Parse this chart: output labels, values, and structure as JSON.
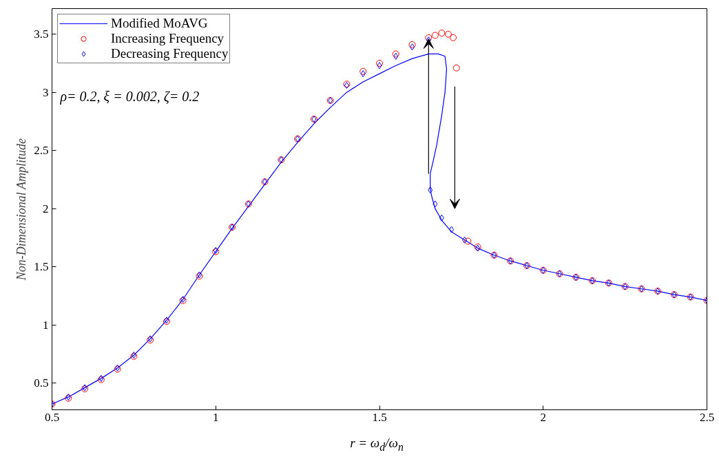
{
  "chart_data": {
    "type": "scatter",
    "xlabel": "r = ω$_{d}$/ω$_{n}$",
    "ylabel": "Non-Dimensional Amplitude",
    "annotations": [
      "ρ= 0.2, ξ = 0.002, ζ= 0.2"
    ],
    "xlim": [
      0.5,
      2.5
    ],
    "ylim": [
      0.27,
      3.72
    ],
    "xticks": [
      0.5,
      1,
      1.5,
      2,
      2.5
    ],
    "yticks": [
      0.5,
      1,
      1.5,
      2,
      2.5,
      3,
      3.5
    ],
    "grid": false,
    "legend": "top left",
    "series": [
      {
        "name": "Modified MoAVG",
        "type": "line",
        "color": "#0000ff",
        "line_style": "solid",
        "marker": "none",
        "x": [
          0.5,
          0.55,
          0.6,
          0.65,
          0.7,
          0.75,
          0.8,
          0.85,
          0.9,
          0.95,
          1.0,
          1.05,
          1.1,
          1.15,
          1.2,
          1.25,
          1.3,
          1.35,
          1.4,
          1.45,
          1.5,
          1.55,
          1.6,
          1.65,
          1.68,
          1.7,
          1.705,
          1.7,
          1.69,
          1.675,
          1.665,
          1.655,
          1.655,
          1.66,
          1.67,
          1.69,
          1.72,
          1.76,
          1.8,
          1.85,
          1.9,
          1.95,
          2.0,
          2.05,
          2.1,
          2.15,
          2.2,
          2.25,
          2.3,
          2.35,
          2.4,
          2.45,
          2.5
        ],
        "values": [
          0.32,
          0.38,
          0.46,
          0.54,
          0.63,
          0.74,
          0.88,
          1.04,
          1.22,
          1.43,
          1.63,
          1.83,
          2.02,
          2.21,
          2.4,
          2.57,
          2.73,
          2.87,
          3.0,
          3.09,
          3.16,
          3.23,
          3.29,
          3.33,
          3.33,
          3.31,
          3.2,
          3.0,
          2.8,
          2.55,
          2.42,
          2.3,
          2.17,
          2.1,
          2.0,
          1.9,
          1.8,
          1.73,
          1.66,
          1.6,
          1.55,
          1.51,
          1.47,
          1.44,
          1.41,
          1.38,
          1.36,
          1.33,
          1.31,
          1.29,
          1.26,
          1.24,
          1.21
        ]
      },
      {
        "name": "Increasing Frequency",
        "color": "#ff0000",
        "marker": "circle",
        "x": [
          0.5,
          0.55,
          0.6,
          0.65,
          0.7,
          0.75,
          0.8,
          0.85,
          0.9,
          0.95,
          1.0,
          1.05,
          1.1,
          1.15,
          1.2,
          1.25,
          1.3,
          1.35,
          1.4,
          1.45,
          1.5,
          1.55,
          1.6,
          1.65,
          1.67,
          1.69,
          1.71,
          1.725,
          1.735,
          1.77,
          1.8,
          1.85,
          1.9,
          1.95,
          2.0,
          2.05,
          2.1,
          2.15,
          2.2,
          2.25,
          2.3,
          2.35,
          2.4,
          2.45,
          2.5
        ],
        "values": [
          0.32,
          0.37,
          0.45,
          0.53,
          0.62,
          0.73,
          0.87,
          1.03,
          1.21,
          1.42,
          1.63,
          1.84,
          2.04,
          2.23,
          2.42,
          2.6,
          2.77,
          2.93,
          3.07,
          3.18,
          3.25,
          3.33,
          3.41,
          3.47,
          3.49,
          3.51,
          3.5,
          3.47,
          3.21,
          1.72,
          1.67,
          1.6,
          1.55,
          1.51,
          1.47,
          1.44,
          1.41,
          1.38,
          1.36,
          1.33,
          1.31,
          1.29,
          1.26,
          1.24,
          1.21
        ]
      },
      {
        "name": "Decreasing Frequency",
        "color": "#0000ff",
        "marker": "diamond",
        "x": [
          2.5,
          2.45,
          2.4,
          2.35,
          2.3,
          2.25,
          2.2,
          2.15,
          2.1,
          2.05,
          2.0,
          1.95,
          1.9,
          1.85,
          1.8,
          1.76,
          1.72,
          1.69,
          1.67,
          1.655,
          1.65,
          1.6,
          1.55,
          1.5,
          1.45,
          1.4,
          1.35,
          1.3,
          1.25,
          1.2,
          1.15,
          1.1,
          1.05,
          1.0,
          0.95,
          0.9,
          0.85,
          0.8,
          0.75,
          0.7,
          0.65,
          0.6,
          0.55,
          0.5
        ],
        "values": [
          1.21,
          1.24,
          1.26,
          1.29,
          1.31,
          1.33,
          1.36,
          1.38,
          1.41,
          1.44,
          1.47,
          1.51,
          1.55,
          1.6,
          1.66,
          1.73,
          1.82,
          1.92,
          2.04,
          2.16,
          3.45,
          3.39,
          3.31,
          3.23,
          3.16,
          3.06,
          2.93,
          2.77,
          2.6,
          2.42,
          2.23,
          2.04,
          1.84,
          1.64,
          1.43,
          1.22,
          1.04,
          0.88,
          0.74,
          0.63,
          0.54,
          0.46,
          0.38,
          0.32
        ]
      }
    ]
  }
}
